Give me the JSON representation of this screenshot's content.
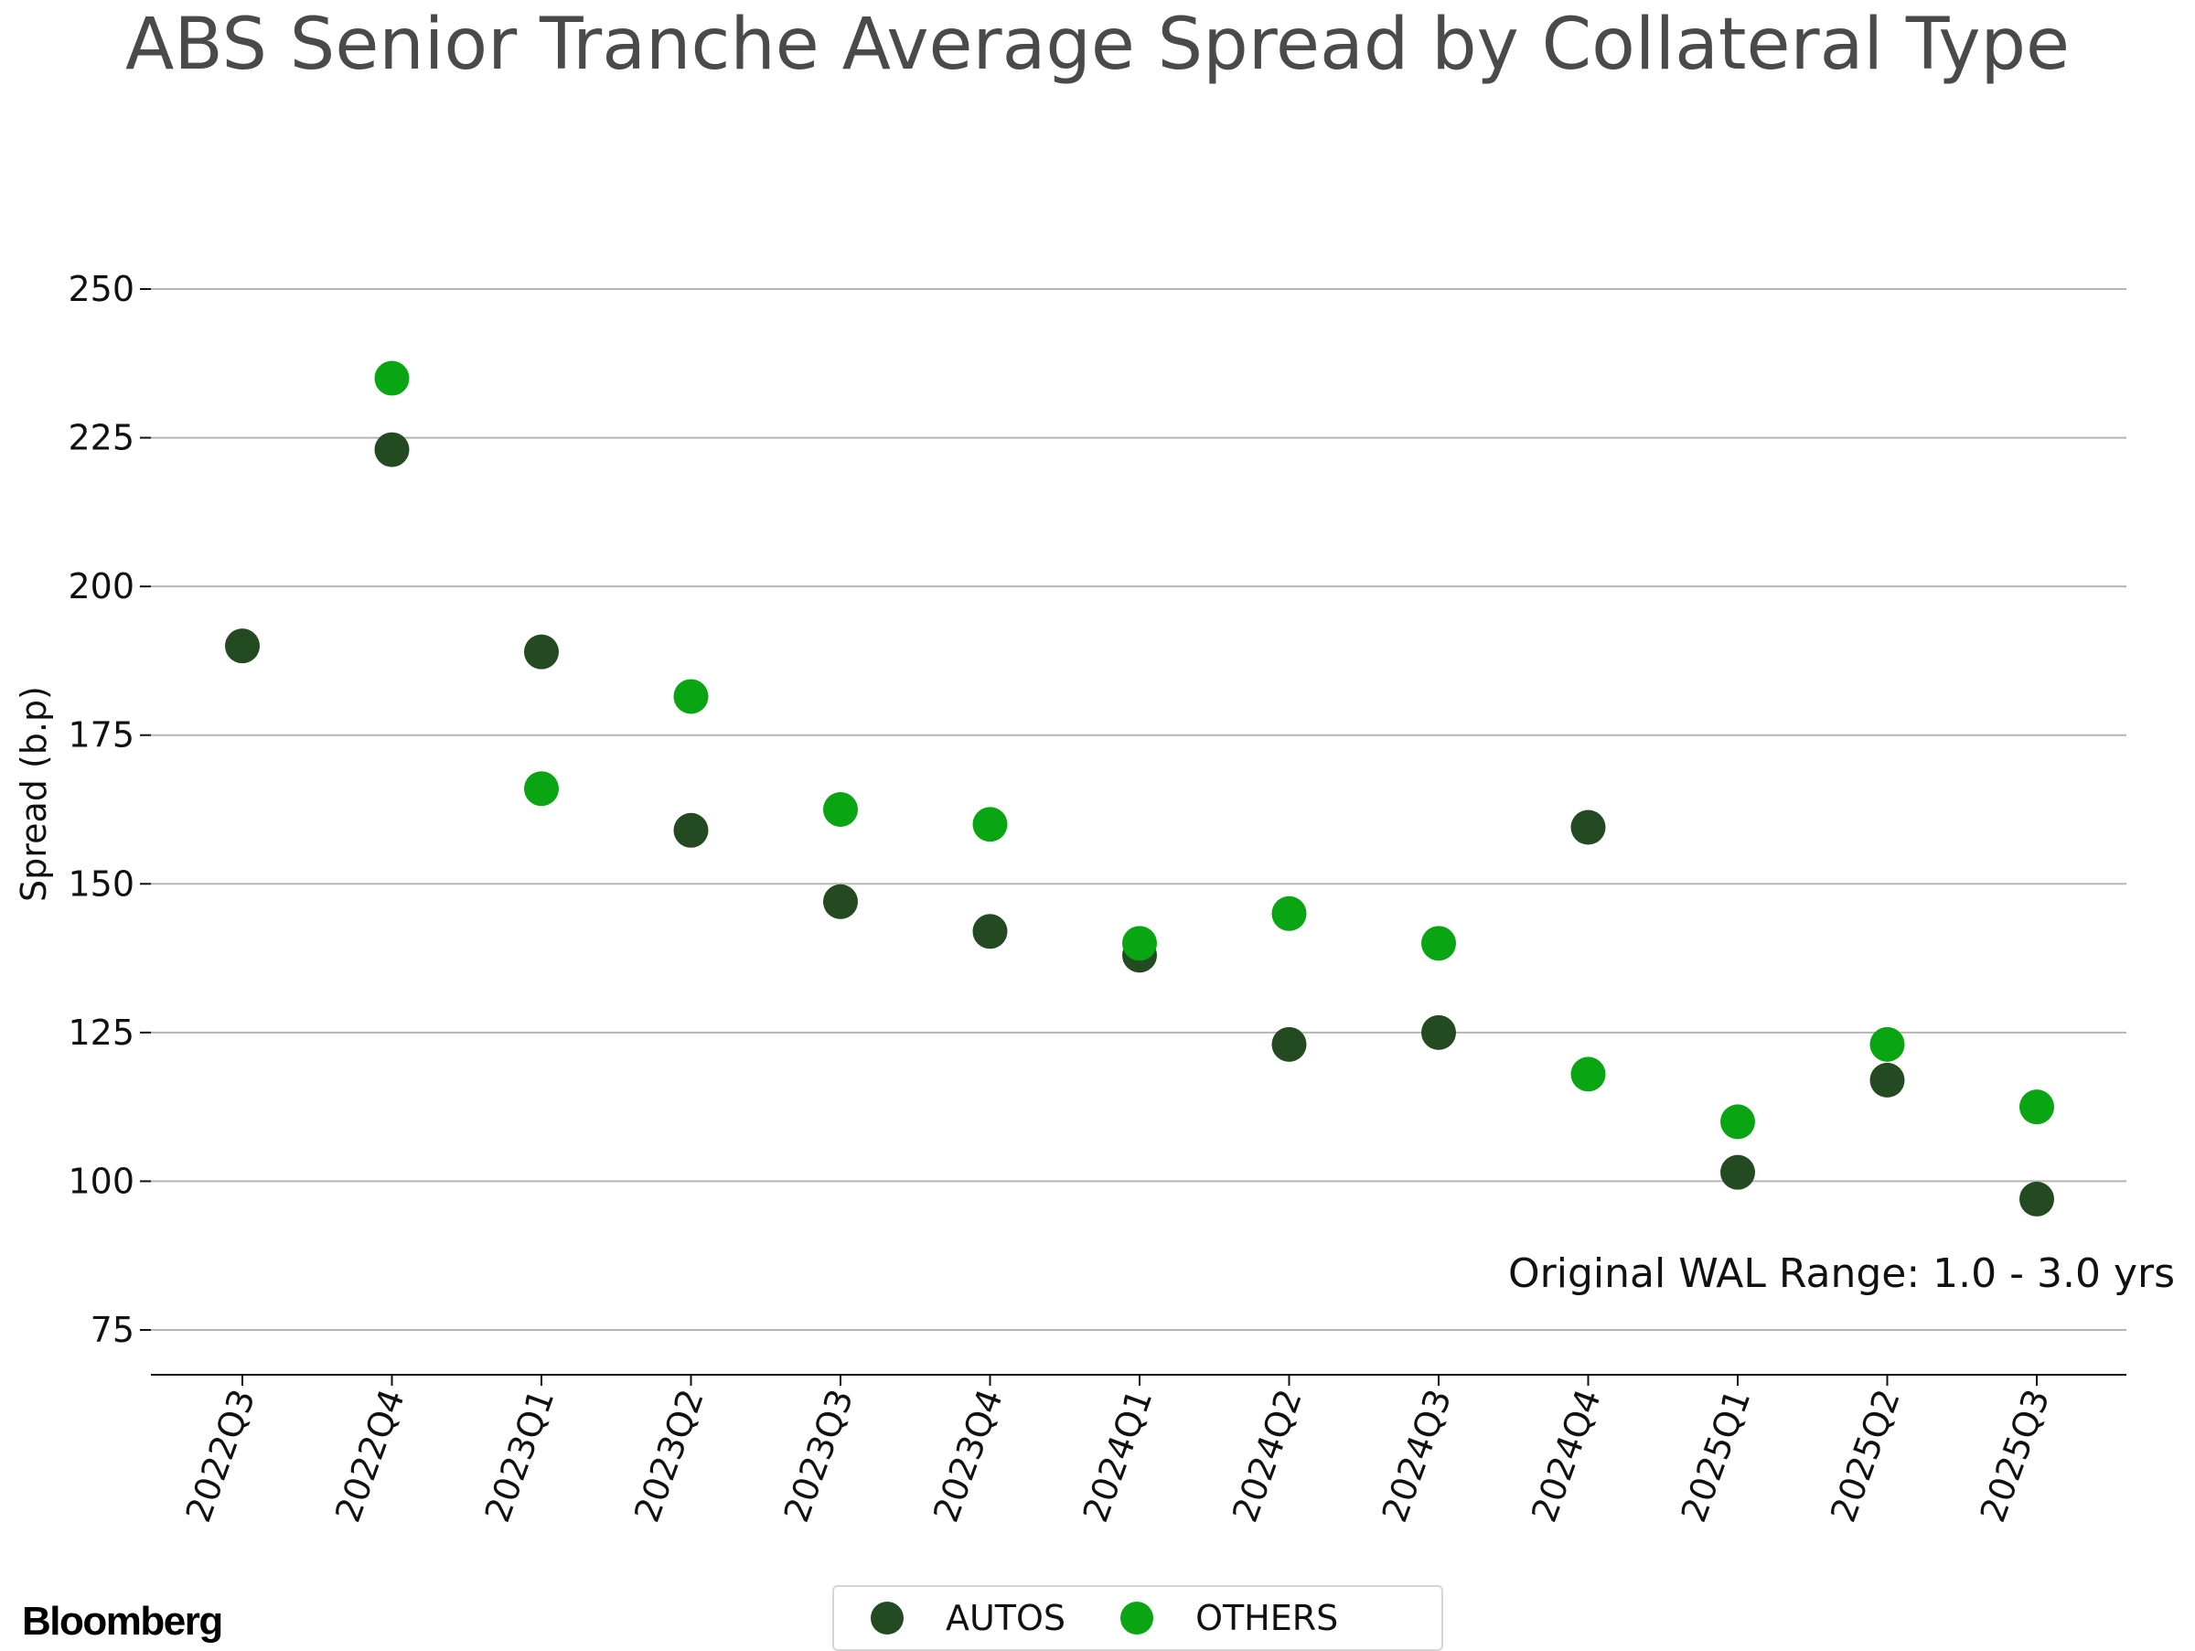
{
  "chart_data": {
    "type": "scatter",
    "title": "ABS Senior Tranche Average Spread by Collateral Type",
    "xlabel": "",
    "ylabel": "Spread (b.p)",
    "ylim": [
      67.5,
      257
    ],
    "yticks": [
      75,
      100,
      125,
      150,
      175,
      200,
      225,
      250
    ],
    "grid": "horizontal",
    "legend_position": "bottom-center",
    "categories": [
      "2022Q3",
      "2022Q4",
      "2023Q1",
      "2023Q2",
      "2023Q3",
      "2023Q4",
      "2024Q1",
      "2024Q2",
      "2024Q3",
      "2024Q4",
      "2025Q1",
      "2025Q2",
      "2025Q3"
    ],
    "series": [
      {
        "name": "AUTOS",
        "color": "#234a20",
        "values": [
          190,
          223,
          189,
          159,
          147,
          142,
          138,
          123,
          125,
          159.5,
          101.5,
          117,
          97
        ]
      },
      {
        "name": "OTHERS",
        "color": "#0aa512",
        "values": [
          null,
          235,
          166,
          181.5,
          162.5,
          160,
          140,
          145,
          140,
          118,
          110,
          123,
          112.5
        ]
      }
    ],
    "annotation": "Original WAL Range: 1.0 - 3.0 yrs"
  },
  "branding": {
    "logo_text": "Bloomberg"
  }
}
